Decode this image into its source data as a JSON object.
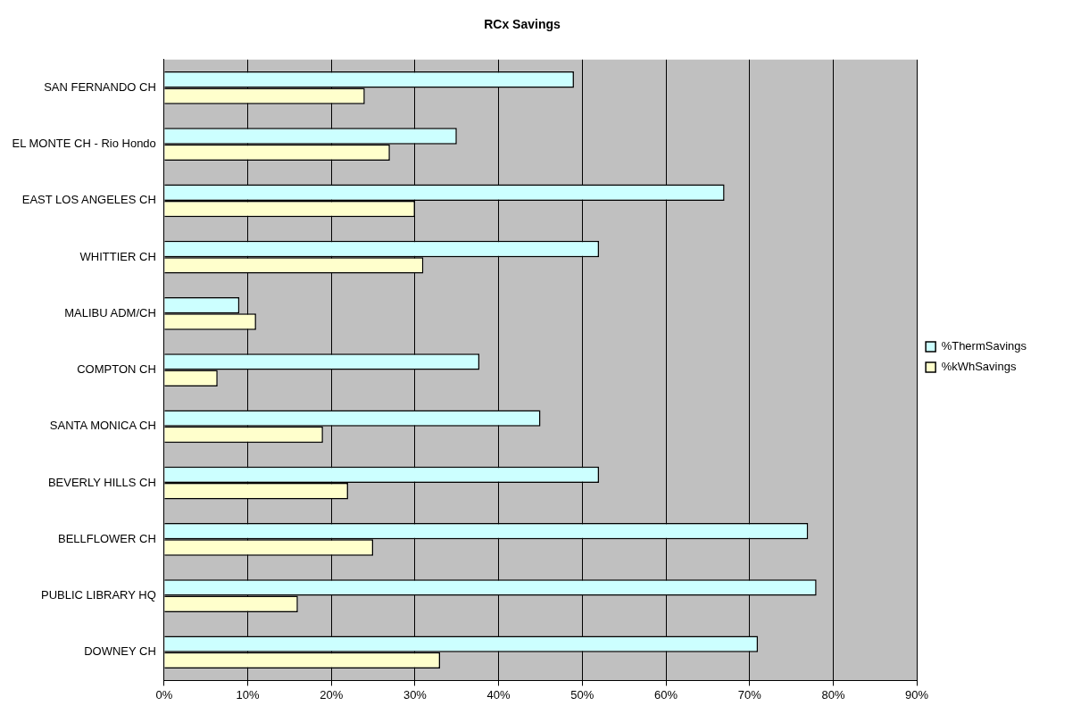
{
  "chart_data": {
    "type": "bar",
    "orientation": "horizontal",
    "title": "RCx Savings",
    "categories": [
      "SAN FERNANDO CH",
      "EL MONTE CH - Rio Hondo",
      "EAST LOS ANGELES CH",
      "WHITTIER CH",
      "MALIBU ADM/CH",
      "COMPTON CH",
      "SANTA MONICA CH",
      "BEVERLY HILLS CH",
      "BELLFLOWER CH",
      "PUBLIC LIBRARY HQ",
      "DOWNEY CH"
    ],
    "series": [
      {
        "name": "%ThermSavings",
        "color": "#ccffff",
        "values": [
          49,
          35,
          67,
          52,
          9,
          37.7,
          45,
          52,
          77,
          78,
          71
        ]
      },
      {
        "name": "%kWhSavings",
        "color": "#ffffcc",
        "values": [
          24,
          27,
          30,
          31,
          11,
          6.4,
          19,
          22,
          25,
          16,
          33
        ]
      }
    ],
    "xlim": [
      0,
      90
    ],
    "xticks": [
      {
        "value": 0,
        "label": "0%"
      },
      {
        "value": 10,
        "label": "10%"
      },
      {
        "value": 20,
        "label": "20%"
      },
      {
        "value": 30,
        "label": "30%"
      },
      {
        "value": 40,
        "label": "40%"
      },
      {
        "value": 50,
        "label": "50%"
      },
      {
        "value": 60,
        "label": "60%"
      },
      {
        "value": 70,
        "label": "70%"
      },
      {
        "value": 80,
        "label": "80%"
      },
      {
        "value": 90,
        "label": "90%"
      }
    ],
    "grid": "x",
    "legend": "right"
  }
}
